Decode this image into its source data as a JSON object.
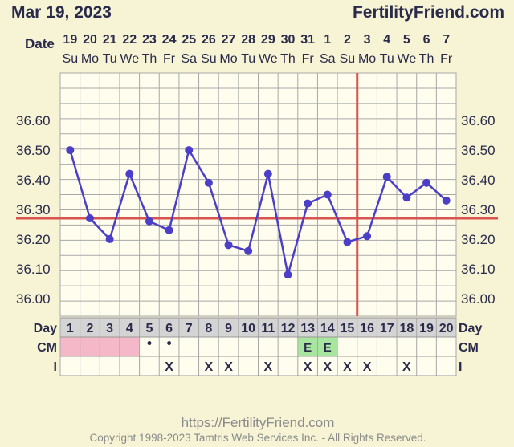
{
  "header": {
    "date": "Mar 19, 2023",
    "site": "FertilityFriend.com",
    "date_row_label": "Date"
  },
  "chart_data": {
    "type": "line",
    "dates": [
      "19",
      "20",
      "21",
      "22",
      "23",
      "24",
      "25",
      "26",
      "27",
      "28",
      "29",
      "30",
      "31",
      "1",
      "2",
      "3",
      "4",
      "5",
      "6",
      "7"
    ],
    "weekdays": [
      "Su",
      "Mo",
      "Tu",
      "We",
      "Th",
      "Fr",
      "Sa",
      "Su",
      "Mo",
      "Tu",
      "We",
      "Th",
      "Fr",
      "Sa",
      "Su",
      "Mo",
      "Tu",
      "We",
      "Th",
      "Fr"
    ],
    "cycle_days": [
      "1",
      "2",
      "3",
      "4",
      "5",
      "6",
      "7",
      "8",
      "9",
      "10",
      "11",
      "12",
      "13",
      "14",
      "15",
      "16",
      "17",
      "18",
      "19",
      "20"
    ],
    "temperatures": [
      36.5,
      36.27,
      36.2,
      36.42,
      36.26,
      36.23,
      36.5,
      36.39,
      36.18,
      36.16,
      36.42,
      36.08,
      36.32,
      36.35,
      36.19,
      36.21,
      36.41,
      36.34,
      36.39,
      36.33
    ],
    "y_ticks": [
      "36.60",
      "36.50",
      "36.40",
      "36.30",
      "36.20",
      "36.10",
      "36.00"
    ],
    "y_tick_values": [
      36.6,
      36.5,
      36.4,
      36.3,
      36.2,
      36.1,
      36.0
    ],
    "ylim": [
      35.94,
      36.76
    ],
    "coverline": 36.27,
    "ovulation_day": 16,
    "cm": [
      "pink",
      "pink",
      "pink",
      "pink",
      "•",
      "•",
      "",
      "",
      "",
      "",
      "",
      "",
      "E",
      "E",
      "",
      "",
      "",
      "",
      "",
      ""
    ],
    "intercourse": [
      "",
      "",
      "",
      "",
      "",
      "X",
      "",
      "X",
      "X",
      "",
      "X",
      "",
      "X",
      "X",
      "X",
      "X",
      "",
      "X",
      "",
      ""
    ],
    "row_labels": {
      "day": "Day",
      "cm": "CM",
      "intercourse": "I"
    }
  },
  "colors": {
    "background": "#f7f4d6",
    "grid_bg": "#fffdee",
    "line": "#4b3fc7",
    "coverline": "#d9534f",
    "cm_pink": "#f4b8c8",
    "cm_egg_white": "#a8e6a0",
    "text": "#2a2a4a"
  },
  "footer": {
    "url": "https://FertilityFriend.com",
    "copyright": "Copyright 1998-2023 Tamtris Web Services Inc. - All Rights Reserved."
  }
}
